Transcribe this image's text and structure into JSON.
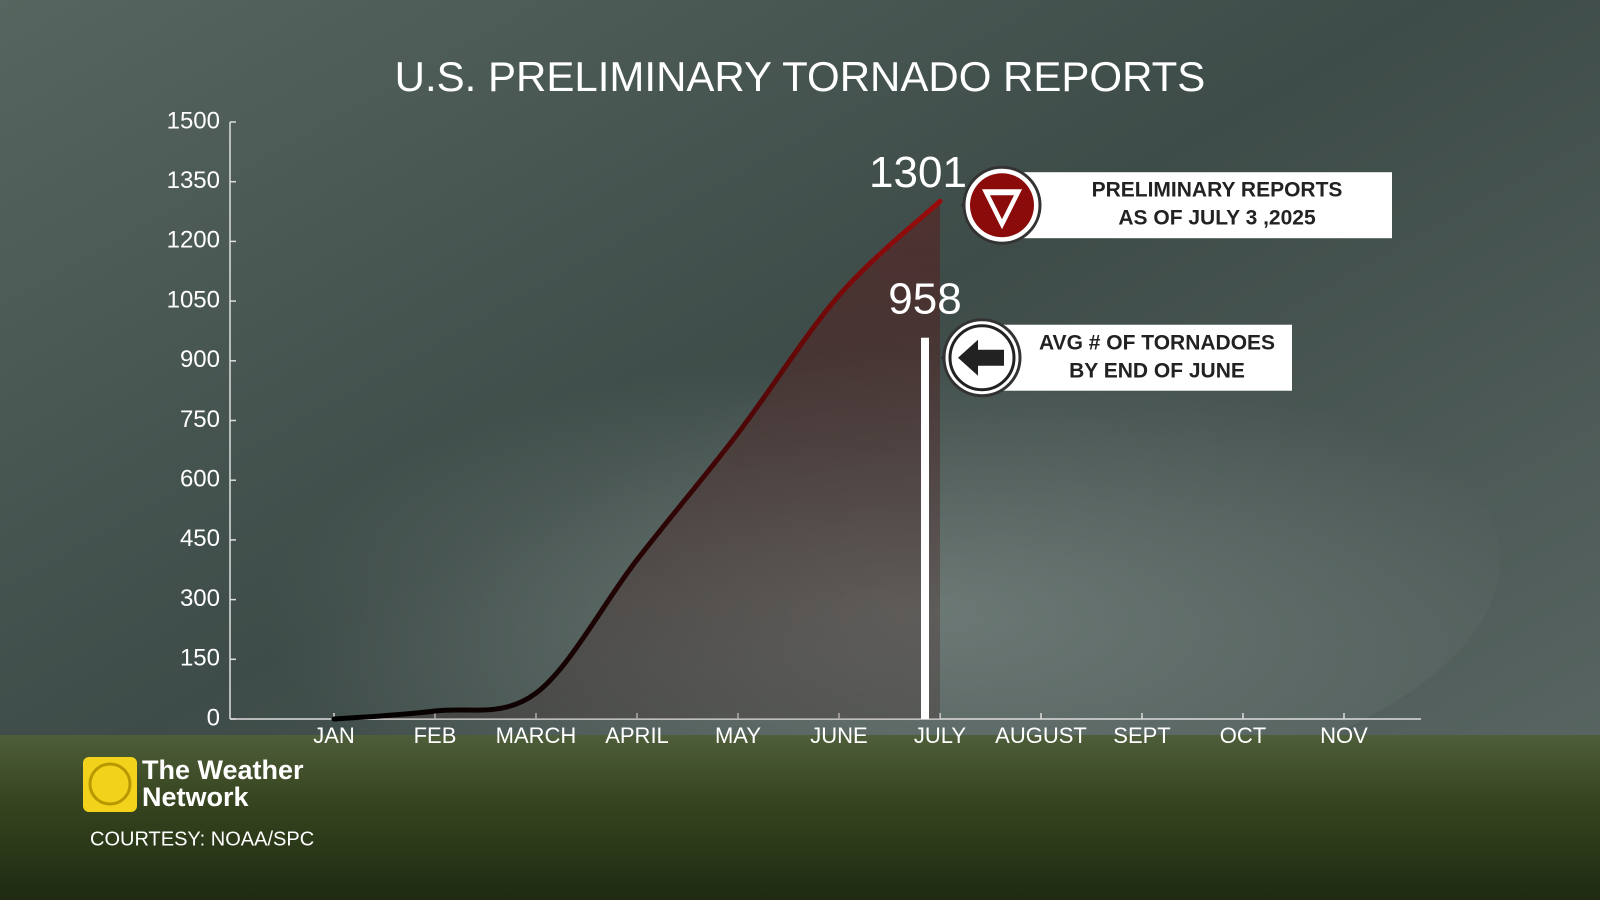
{
  "chart_data": {
    "type": "line",
    "title": "U.S. PRELIMINARY TORNADO REPORTS",
    "categories": [
      "JAN",
      "FEB",
      "MARCH",
      "APRIL",
      "MAY",
      "JUNE",
      "JULY",
      "AUGUST",
      "SEPT",
      "OCT",
      "NOV"
    ],
    "series": [
      {
        "name": "Preliminary reports",
        "color": "#8b0a0a",
        "values": [
          0,
          20,
          65,
          400,
          718,
          1064,
          1301,
          null,
          null,
          null,
          null
        ]
      }
    ],
    "ylim": [
      0,
      1500
    ],
    "yticks": [
      0,
      150,
      300,
      450,
      600,
      750,
      900,
      1050,
      1200,
      1350,
      1500
    ],
    "average": {
      "value": 958,
      "color": "#ffffff"
    },
    "annotations": [
      {
        "lines": [
          "PRELIMINARY REPORTS",
          "AS OF JULY 3 ,2025"
        ]
      },
      {
        "lines": [
          "AVG # OF TORNADOES",
          "BY END OF JUNE"
        ]
      }
    ],
    "brand": {
      "name": [
        "The Weather",
        "Network"
      ],
      "credit": "COURTESY: NOAA/SPC"
    }
  }
}
